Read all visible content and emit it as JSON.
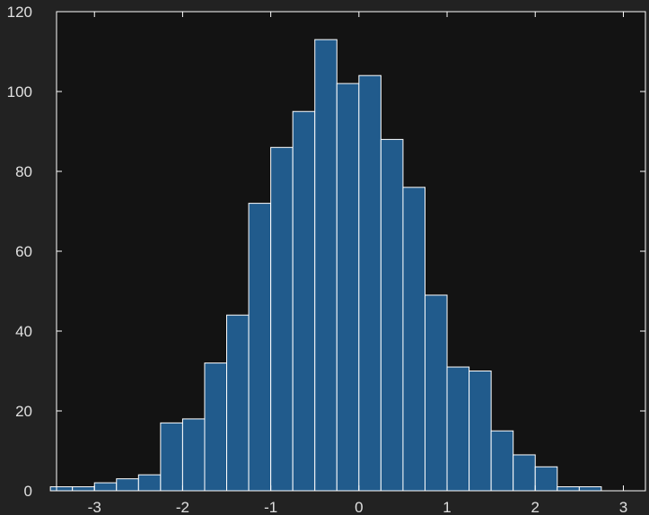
{
  "chart_data": {
    "type": "bar",
    "subtype": "histogram",
    "title": "",
    "xlabel": "",
    "ylabel": "",
    "colors": {
      "figure_background": "#222222",
      "axes_background": "#131313",
      "bar_fill": "#215b8c",
      "bar_edge": "#ffffff",
      "axis_line": "#ffffff",
      "tick_text": "#e0e0e0"
    },
    "bin_width": 0.25,
    "bins": [
      {
        "start": -3.5,
        "end": -3.25,
        "count": 1
      },
      {
        "start": -3.25,
        "end": -3.0,
        "count": 1
      },
      {
        "start": -3.0,
        "end": -2.75,
        "count": 2
      },
      {
        "start": -2.75,
        "end": -2.5,
        "count": 3
      },
      {
        "start": -2.5,
        "end": -2.25,
        "count": 4
      },
      {
        "start": -2.25,
        "end": -2.0,
        "count": 17
      },
      {
        "start": -2.0,
        "end": -1.75,
        "count": 18
      },
      {
        "start": -1.75,
        "end": -1.5,
        "count": 32
      },
      {
        "start": -1.5,
        "end": -1.25,
        "count": 44
      },
      {
        "start": -1.25,
        "end": -1.0,
        "count": 72
      },
      {
        "start": -1.0,
        "end": -0.75,
        "count": 86
      },
      {
        "start": -0.75,
        "end": -0.5,
        "count": 95
      },
      {
        "start": -0.5,
        "end": -0.25,
        "count": 113
      },
      {
        "start": -0.25,
        "end": 0.0,
        "count": 102
      },
      {
        "start": 0.0,
        "end": 0.25,
        "count": 104
      },
      {
        "start": 0.25,
        "end": 0.5,
        "count": 88
      },
      {
        "start": 0.5,
        "end": 0.75,
        "count": 76
      },
      {
        "start": 0.75,
        "end": 1.0,
        "count": 49
      },
      {
        "start": 1.0,
        "end": 1.25,
        "count": 31
      },
      {
        "start": 1.25,
        "end": 1.5,
        "count": 30
      },
      {
        "start": 1.5,
        "end": 1.75,
        "count": 15
      },
      {
        "start": 1.75,
        "end": 2.0,
        "count": 9
      },
      {
        "start": 2.0,
        "end": 2.25,
        "count": 6
      },
      {
        "start": 2.25,
        "end": 2.5,
        "count": 1
      },
      {
        "start": 2.5,
        "end": 2.75,
        "count": 1
      }
    ],
    "xlim": [
      -3.43,
      3.25
    ],
    "ylim": [
      0,
      120
    ],
    "xticks": [
      -3,
      -2,
      -1,
      0,
      1,
      2,
      3
    ],
    "yticks": [
      0,
      20,
      40,
      60,
      80,
      100,
      120
    ],
    "grid": false,
    "legend": null
  }
}
